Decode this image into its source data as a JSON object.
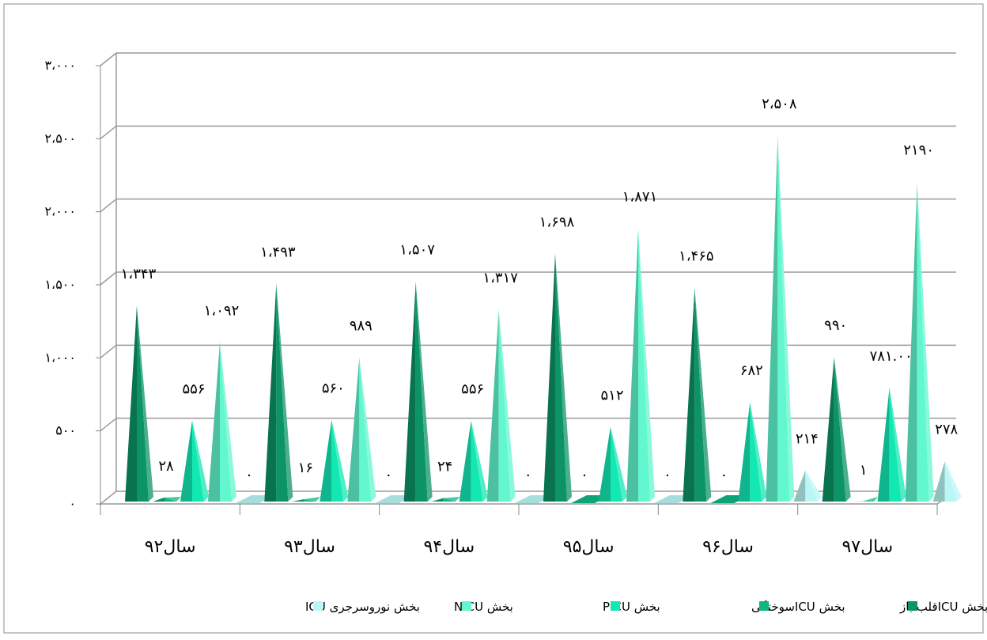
{
  "chart_data": {
    "type": "bar",
    "style": "3d-cone",
    "title": "",
    "xlabel": "",
    "ylabel": "",
    "ylim": [
      0,
      3000
    ],
    "grid": true,
    "legend_position": "bottom",
    "y_tick_labels": [
      "۰",
      "۵۰۰",
      "۱،۰۰۰",
      "۱،۵۰۰",
      "۲،۰۰۰",
      "۲،۵۰۰",
      "۳،۰۰۰"
    ],
    "categories": [
      "سال۹۲",
      "سال۹۳",
      "سال۹۴",
      "سال۹۵",
      "سال۹۶",
      "سال۹۷"
    ],
    "series": [
      {
        "name": "بخش ICUقلب باز",
        "color": "#0c9467",
        "values": [
          1343,
          1493,
          1507,
          1698,
          1465,
          990
        ],
        "labels": [
          "۱،۳۴۳",
          "۱،۴۹۳",
          "۱،۵۰۷",
          "۱،۶۹۸",
          "۱،۴۶۵",
          "۹۹۰"
        ]
      },
      {
        "name": "بخش ICUسوختگی",
        "color": "#0fb583",
        "values": [
          28,
          16,
          24,
          0,
          0,
          1
        ],
        "labels": [
          "۲۸",
          "۱۶",
          "۲۴",
          "۰",
          "۰",
          "۱"
        ]
      },
      {
        "name": "بخش PICU",
        "color": "#13e8b3",
        "values": [
          556,
          560,
          556,
          512,
          682,
          781
        ],
        "labels": [
          "۵۵۶",
          "۵۶۰",
          "۵۵۶",
          "۵۱۲",
          "۶۸۲",
          "۷۸۱.۰۰"
        ]
      },
      {
        "name": "بخش NICU",
        "color": "#62f7cf",
        "values": [
          1092,
          989,
          1317,
          1871,
          2508,
          2190
        ],
        "labels": [
          "۱،۰۹۲",
          "۹۸۹",
          "۱،۳۱۷",
          "۱،۸۷۱",
          "۲،۵۰۸",
          "۲۱۹۰"
        ]
      },
      {
        "name": "بخش نوروسرجری ICU",
        "color": "#b8f7f5",
        "values": [
          0,
          0,
          0,
          0,
          214,
          278
        ],
        "labels": [
          "۰",
          "۰",
          "۰",
          "۰",
          "۲۱۴",
          "۲۷۸"
        ]
      }
    ]
  }
}
